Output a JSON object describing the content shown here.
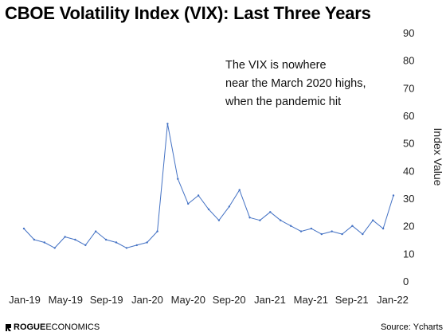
{
  "chart_data": {
    "type": "line",
    "title": "CBOE Volatility Index (VIX): Last Three Years",
    "ylabel": "Index Value",
    "xlabel": "",
    "ylim": [
      0,
      90
    ],
    "yticks": [
      "0",
      "10",
      "20",
      "30",
      "40",
      "50",
      "60",
      "70",
      "80",
      "90"
    ],
    "xlim": [
      "2019-01",
      "2022-01"
    ],
    "xticks": [
      "Jan-19",
      "May-19",
      "Sep-19",
      "Jan-20",
      "May-20",
      "Sep-20",
      "Jan-21",
      "May-21",
      "Sep-21",
      "Jan-22"
    ],
    "grid": false,
    "line_color": "#4472c4",
    "annotation": [
      "The VIX is nowhere",
      "near the March 2020 highs,",
      "when the pandemic hit"
    ],
    "x": [
      "2019-01",
      "2019-02",
      "2019-03",
      "2019-04",
      "2019-05",
      "2019-06",
      "2019-07",
      "2019-08",
      "2019-09",
      "2019-10",
      "2019-11",
      "2019-12",
      "2020-01",
      "2020-02",
      "2020-03",
      "2020-04",
      "2020-05",
      "2020-06",
      "2020-07",
      "2020-08",
      "2020-09",
      "2020-10",
      "2020-11",
      "2020-12",
      "2021-01",
      "2021-02",
      "2021-03",
      "2021-04",
      "2021-05",
      "2021-06",
      "2021-07",
      "2021-08",
      "2021-09",
      "2021-10",
      "2021-11",
      "2021-12",
      "2022-01"
    ],
    "values": [
      19,
      15,
      14,
      12,
      16,
      15,
      13,
      18,
      15,
      14,
      12,
      13,
      14,
      18,
      57,
      37,
      28,
      31,
      26,
      22,
      27,
      33,
      23,
      22,
      25,
      22,
      20,
      18,
      19,
      17,
      18,
      17,
      20,
      17,
      22,
      19,
      31
    ]
  },
  "source": "Source: Ycharts",
  "logo": {
    "brand": "ROGUE",
    "suffix": " ECONOMICS"
  }
}
